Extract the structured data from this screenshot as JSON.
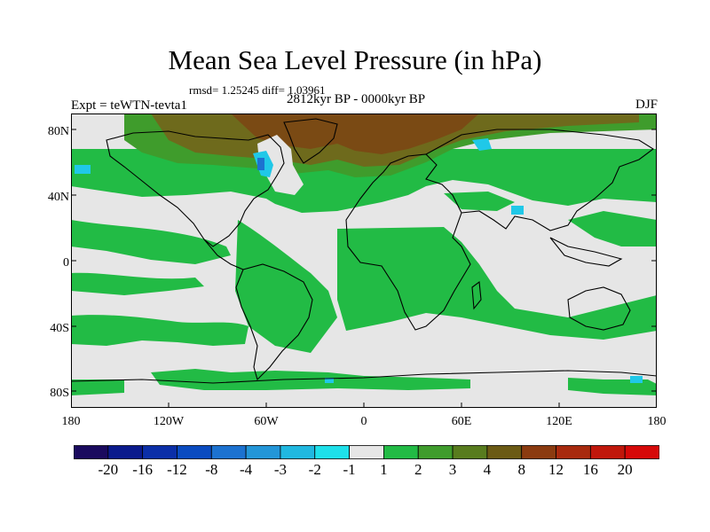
{
  "title": "Mean Sea Level Pressure (in hPa)",
  "stats": "rmsd= 1.25245 diff= 1.03961",
  "experiment": "Expt = teWTN-tevta1",
  "period": "2812kyr BP - 0000kyr BP",
  "season": "DJF",
  "lat_labels": [
    "80N",
    "40N",
    "0",
    "40S",
    "80S"
  ],
  "lon_labels": [
    "180",
    "120W",
    "60W",
    "0",
    "60E",
    "120E",
    "180"
  ],
  "colorbar": {
    "labels": [
      "-20",
      "-16",
      "-12",
      "-8",
      "-4",
      "-3",
      "-2",
      "-1",
      "1",
      "2",
      "3",
      "4",
      "8",
      "12",
      "16",
      "20"
    ],
    "colors": [
      "#1a0a5e",
      "#0a1a8c",
      "#0b2fa8",
      "#0a4bc0",
      "#1c72d0",
      "#2396d8",
      "#20b8e0",
      "#1ee0ea",
      "#e6e6e6",
      "#22bb45",
      "#3f9c2c",
      "#587c1e",
      "#6b5a14",
      "#8b3b10",
      "#a82a0e",
      "#c0170b",
      "#d60909"
    ]
  },
  "colors": {
    "land_outline": "#000000",
    "positive_1_2": "#22bb45",
    "neutral": "#e6e6e6",
    "high_anomaly": "#7a4a14",
    "negative_anomaly": "#20c8e8"
  }
}
